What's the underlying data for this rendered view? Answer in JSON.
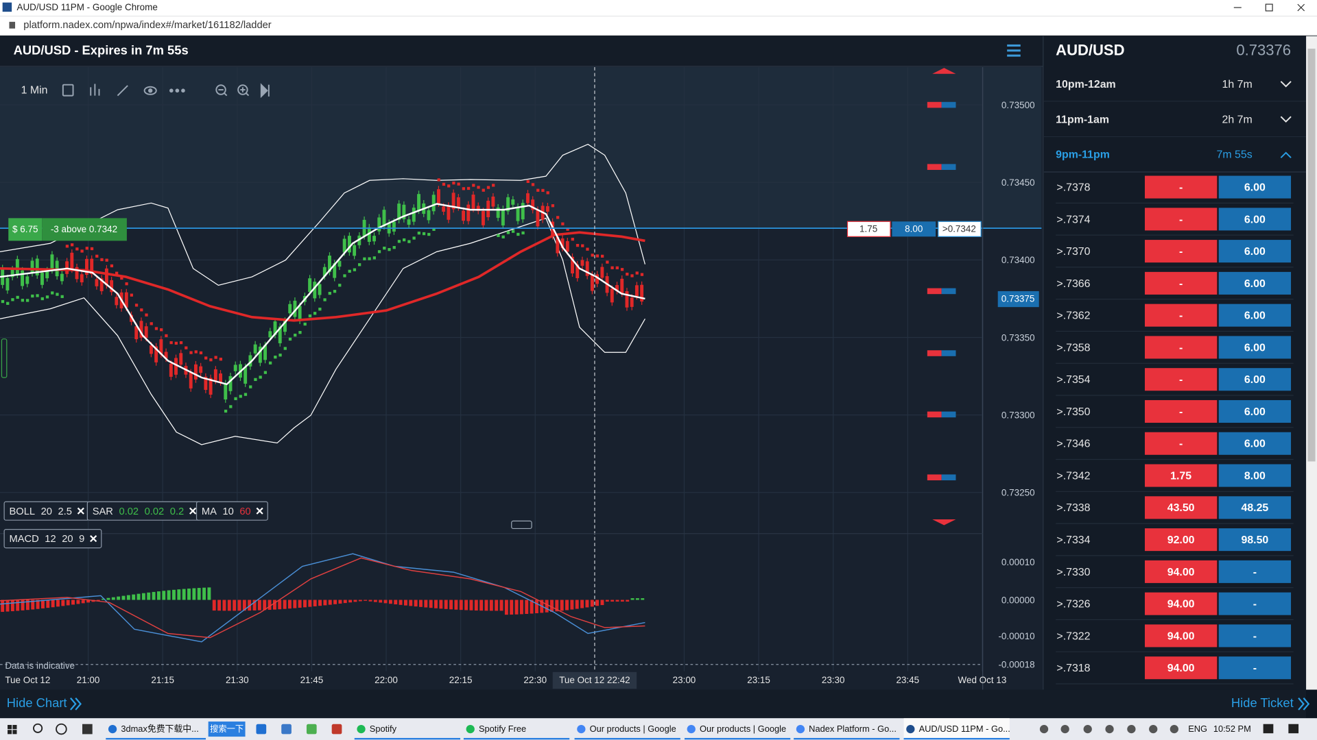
{
  "browser": {
    "tab_title": "AUD/USD 11PM - Google Chrome",
    "url": "platform.nadex.com/npwa/index#/market/161182/ladder"
  },
  "header": {
    "title": "AUD/USD - Expires in 7m 55s"
  },
  "toolbar": {
    "interval": "1 Min"
  },
  "position": {
    "pnl": "$ 6.75",
    "text": "-3 above 0.7342"
  },
  "order_line": {
    "bid": "1.75",
    "offer": "8.00",
    "strike": ">0.7342"
  },
  "price_axis": [
    "0.73500",
    "0.73450",
    "0.73400",
    "0.73350",
    "0.73300",
    "0.73250"
  ],
  "current_price": "0.73375",
  "indicators": [
    {
      "name": "BOLL",
      "params": [
        {
          "text": "20",
          "color": "#e6e6e6"
        },
        {
          "text": "2.5",
          "color": "#e6e6e6"
        }
      ]
    },
    {
      "name": "SAR",
      "params": [
        {
          "text": "0.02",
          "color": "#3fbf4a"
        },
        {
          "text": "0.02",
          "color": "#3fbf4a"
        },
        {
          "text": "0.2",
          "color": "#3fbf4a"
        }
      ]
    },
    {
      "name": "MA",
      "params": [
        {
          "text": "10",
          "color": "#e6e6e6"
        },
        {
          "text": "60",
          "color": "#e8323c"
        }
      ]
    },
    {
      "name": "MACD",
      "params": [
        {
          "text": "12",
          "color": "#e6e6e6"
        },
        {
          "text": "20",
          "color": "#e6e6e6"
        },
        {
          "text": "9",
          "color": "#e6e6e6"
        }
      ]
    }
  ],
  "macd_axis": [
    "0.00010",
    "0.00000",
    "-0.00010",
    "-0.00018"
  ],
  "note": "Data is indicative",
  "time_axis": [
    "Tue Oct 12",
    "21:00",
    "21:15",
    "21:30",
    "21:45",
    "22:00",
    "22:15",
    "22:30",
    "Tue Oct 12 22:42",
    "23:00",
    "23:15",
    "23:30",
    "23:45",
    "Wed Oct 13"
  ],
  "ticket": {
    "market": "AUD/USD",
    "price": "0.73376",
    "expiries": [
      {
        "label": "10pm-12am",
        "time": "1h 7m"
      },
      {
        "label": "11pm-1am",
        "time": "2h 7m"
      },
      {
        "label": "9pm-11pm",
        "time": "7m 55s"
      }
    ],
    "ladder": [
      {
        "strike": ">.7378",
        "sell": "-",
        "buy": "6.00"
      },
      {
        "strike": ">.7374",
        "sell": "-",
        "buy": "6.00"
      },
      {
        "strike": ">.7370",
        "sell": "-",
        "buy": "6.00"
      },
      {
        "strike": ">.7366",
        "sell": "-",
        "buy": "6.00"
      },
      {
        "strike": ">.7362",
        "sell": "-",
        "buy": "6.00"
      },
      {
        "strike": ">.7358",
        "sell": "-",
        "buy": "6.00"
      },
      {
        "strike": ">.7354",
        "sell": "-",
        "buy": "6.00"
      },
      {
        "strike": ">.7350",
        "sell": "-",
        "buy": "6.00"
      },
      {
        "strike": ">.7346",
        "sell": "-",
        "buy": "6.00"
      },
      {
        "strike": ">.7342",
        "sell": "1.75",
        "buy": "8.00"
      },
      {
        "strike": ">.7338",
        "sell": "43.50",
        "buy": "48.25"
      },
      {
        "strike": ">.7334",
        "sell": "92.00",
        "buy": "98.50"
      },
      {
        "strike": ">.7330",
        "sell": "94.00",
        "buy": "-"
      },
      {
        "strike": ">.7326",
        "sell": "94.00",
        "buy": "-"
      },
      {
        "strike": ">.7322",
        "sell": "94.00",
        "buy": "-"
      },
      {
        "strike": ">.7318",
        "sell": "94.00",
        "buy": "-"
      }
    ]
  },
  "footer": {
    "hide_chart": "Hide Chart",
    "hide_ticket": "Hide Ticket"
  },
  "taskbar": {
    "items": [
      "3dmax免费下载中...",
      "搜索一下",
      "Spotify",
      "Spotify Free",
      "Our products | Google",
      "Our products | Google",
      "Nadex Platform - Go...",
      "AUD/USD 11PM - Go..."
    ],
    "language": "ENG",
    "clock": "10:52 PM"
  }
}
